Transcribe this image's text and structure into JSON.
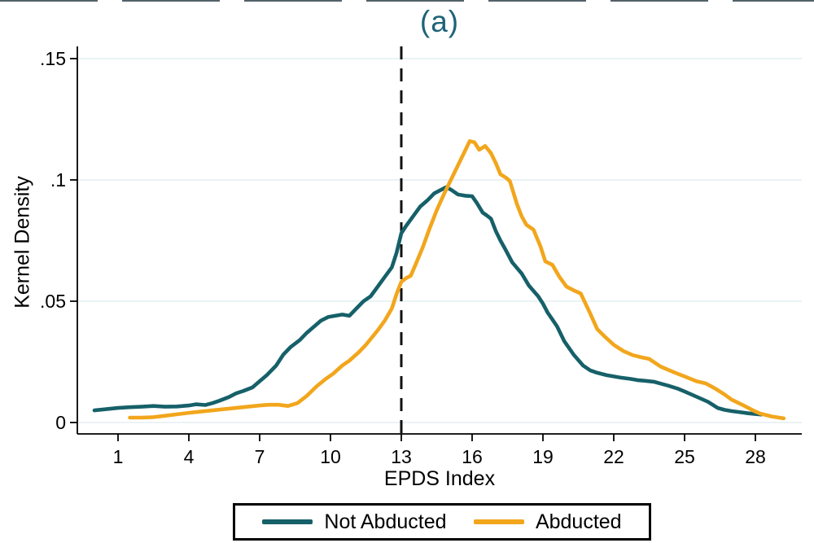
{
  "title": "(a)",
  "axes": {
    "y_label": "Kernel Density",
    "x_label": "EPDS Index",
    "y_tick_labels": [
      "0",
      ".05",
      ".1",
      ".15"
    ],
    "x_tick_labels": [
      "1",
      "4",
      "7",
      "10",
      "13",
      "16",
      "19",
      "22",
      "25",
      "28"
    ]
  },
  "legend": {
    "items": [
      {
        "label": "Not Abducted",
        "color": "#166069"
      },
      {
        "label": "Abducted",
        "color": "#F2A61C"
      }
    ]
  },
  "colors": {
    "not_abducted": "#166069",
    "abducted": "#F2A61C",
    "title": "#1d6378",
    "gridline": "#dde9ef",
    "axis": "#000000",
    "reference_line": "#111111"
  },
  "chart_data": {
    "type": "line",
    "title": "(a)",
    "xlabel": "EPDS Index",
    "ylabel": "Kernel Density",
    "xlim": [
      0,
      29.5
    ],
    "ylim": [
      0,
      0.15
    ],
    "x_tick_values": [
      1,
      4,
      7,
      10,
      13,
      16,
      19,
      22,
      25,
      28
    ],
    "y_tick_values": [
      0,
      0.05,
      0.1,
      0.15
    ],
    "grid": "horizontal",
    "legend_position": "bottom",
    "reference_line_x": 13,
    "series": [
      {
        "name": "Not Abducted",
        "color": "#166069",
        "points": [
          [
            0.0,
            0.005
          ],
          [
            0.5,
            0.0055
          ],
          [
            1,
            0.006
          ],
          [
            1.5,
            0.0063
          ],
          [
            2,
            0.0065
          ],
          [
            2.5,
            0.0068
          ],
          [
            3,
            0.0065
          ],
          [
            3.5,
            0.0066
          ],
          [
            4,
            0.007
          ],
          [
            4.3,
            0.0075
          ],
          [
            4.7,
            0.0072
          ],
          [
            5,
            0.008
          ],
          [
            5.3,
            0.009
          ],
          [
            5.7,
            0.0105
          ],
          [
            6,
            0.012
          ],
          [
            6.3,
            0.013
          ],
          [
            6.7,
            0.0145
          ],
          [
            7,
            0.017
          ],
          [
            7.3,
            0.0195
          ],
          [
            7.7,
            0.0235
          ],
          [
            8,
            0.028
          ],
          [
            8.3,
            0.031
          ],
          [
            8.7,
            0.034
          ],
          [
            9,
            0.037
          ],
          [
            9.3,
            0.0395
          ],
          [
            9.6,
            0.042
          ],
          [
            9.9,
            0.0435
          ],
          [
            10.2,
            0.044
          ],
          [
            10.5,
            0.0445
          ],
          [
            10.8,
            0.044
          ],
          [
            11.1,
            0.047
          ],
          [
            11.4,
            0.05
          ],
          [
            11.7,
            0.052
          ],
          [
            12,
            0.056
          ],
          [
            12.3,
            0.06
          ],
          [
            12.6,
            0.064
          ],
          [
            12.8,
            0.07
          ],
          [
            13,
            0.078
          ],
          [
            13.2,
            0.081
          ],
          [
            13.5,
            0.085
          ],
          [
            13.8,
            0.089
          ],
          [
            14.1,
            0.0915
          ],
          [
            14.4,
            0.0945
          ],
          [
            14.7,
            0.096
          ],
          [
            14.9,
            0.097
          ],
          [
            15.1,
            0.096
          ],
          [
            15.4,
            0.094
          ],
          [
            15.7,
            0.0935
          ],
          [
            16,
            0.0933
          ],
          [
            16.2,
            0.0905
          ],
          [
            16.45,
            0.0865
          ],
          [
            16.6,
            0.0855
          ],
          [
            16.8,
            0.084
          ],
          [
            17,
            0.079
          ],
          [
            17.2,
            0.075
          ],
          [
            17.4,
            0.0715
          ],
          [
            17.7,
            0.066
          ],
          [
            18.1,
            0.0614
          ],
          [
            18.4,
            0.0565
          ],
          [
            18.8,
            0.052
          ],
          [
            19,
            0.049
          ],
          [
            19.2,
            0.0453
          ],
          [
            19.4,
            0.0425
          ],
          [
            19.6,
            0.0396
          ],
          [
            19.9,
            0.0336
          ],
          [
            20.3,
            0.028
          ],
          [
            20.7,
            0.0235
          ],
          [
            21,
            0.0215
          ],
          [
            21.3,
            0.0205
          ],
          [
            21.7,
            0.0195
          ],
          [
            22,
            0.019
          ],
          [
            22.3,
            0.0185
          ],
          [
            22.7,
            0.018
          ],
          [
            23,
            0.0175
          ],
          [
            23.3,
            0.0172
          ],
          [
            23.7,
            0.0168
          ],
          [
            24,
            0.016
          ],
          [
            24.3,
            0.0152
          ],
          [
            24.7,
            0.014
          ],
          [
            25,
            0.0128
          ],
          [
            25.3,
            0.0115
          ],
          [
            25.7,
            0.0098
          ],
          [
            26,
            0.0085
          ],
          [
            26.4,
            0.006
          ],
          [
            26.7,
            0.0052
          ],
          [
            27,
            0.0047
          ],
          [
            27.4,
            0.0042
          ],
          [
            27.7,
            0.0038
          ],
          [
            28,
            0.0035
          ],
          [
            28.25,
            0.0033
          ]
        ]
      },
      {
        "name": "Abducted",
        "color": "#F2A61C",
        "points": [
          [
            1.5,
            0.002
          ],
          [
            2,
            0.002
          ],
          [
            2.5,
            0.0022
          ],
          [
            3,
            0.0028
          ],
          [
            3.5,
            0.0034
          ],
          [
            4,
            0.004
          ],
          [
            4.5,
            0.0045
          ],
          [
            5,
            0.005
          ],
          [
            5.5,
            0.0055
          ],
          [
            6,
            0.006
          ],
          [
            6.5,
            0.0065
          ],
          [
            7,
            0.007
          ],
          [
            7.4,
            0.0073
          ],
          [
            7.8,
            0.0073
          ],
          [
            8.2,
            0.0068
          ],
          [
            8.6,
            0.008
          ],
          [
            9,
            0.011
          ],
          [
            9.4,
            0.0148
          ],
          [
            9.8,
            0.018
          ],
          [
            10.1,
            0.02
          ],
          [
            10.5,
            0.0235
          ],
          [
            10.8,
            0.0255
          ],
          [
            11.2,
            0.029
          ],
          [
            11.5,
            0.032
          ],
          [
            12,
            0.038
          ],
          [
            12.3,
            0.042
          ],
          [
            12.6,
            0.047
          ],
          [
            12.8,
            0.053
          ],
          [
            13,
            0.058
          ],
          [
            13.2,
            0.0595
          ],
          [
            13.4,
            0.0605
          ],
          [
            13.6,
            0.065
          ],
          [
            13.9,
            0.072
          ],
          [
            14.2,
            0.08
          ],
          [
            14.5,
            0.0875
          ],
          [
            14.8,
            0.094
          ],
          [
            15.1,
            0.1
          ],
          [
            15.4,
            0.106
          ],
          [
            15.7,
            0.112
          ],
          [
            15.9,
            0.116
          ],
          [
            16.1,
            0.1155
          ],
          [
            16.3,
            0.1124
          ],
          [
            16.55,
            0.114
          ],
          [
            16.8,
            0.111
          ],
          [
            17,
            0.107
          ],
          [
            17.2,
            0.1023
          ],
          [
            17.45,
            0.1008
          ],
          [
            17.6,
            0.0995
          ],
          [
            17.9,
            0.09
          ],
          [
            18.1,
            0.085
          ],
          [
            18.3,
            0.0815
          ],
          [
            18.6,
            0.0795
          ],
          [
            18.9,
            0.0725
          ],
          [
            19.1,
            0.0664
          ],
          [
            19.4,
            0.065
          ],
          [
            19.7,
            0.06
          ],
          [
            20,
            0.056
          ],
          [
            20.3,
            0.0545
          ],
          [
            20.6,
            0.0532
          ],
          [
            21,
            0.045
          ],
          [
            21.3,
            0.0385
          ],
          [
            21.6,
            0.0356
          ],
          [
            22,
            0.032
          ],
          [
            22.4,
            0.0295
          ],
          [
            22.8,
            0.0278
          ],
          [
            23.2,
            0.0268
          ],
          [
            23.5,
            0.0262
          ],
          [
            24,
            0.023
          ],
          [
            24.6,
            0.0205
          ],
          [
            25,
            0.019
          ],
          [
            25.5,
            0.017
          ],
          [
            25.9,
            0.0161
          ],
          [
            26.3,
            0.014
          ],
          [
            26.7,
            0.0115
          ],
          [
            27,
            0.0094
          ],
          [
            27.5,
            0.007
          ],
          [
            27.9,
            0.005
          ],
          [
            28.2,
            0.0037
          ],
          [
            28.7,
            0.0025
          ],
          [
            29.2,
            0.0017
          ]
        ]
      }
    ]
  }
}
